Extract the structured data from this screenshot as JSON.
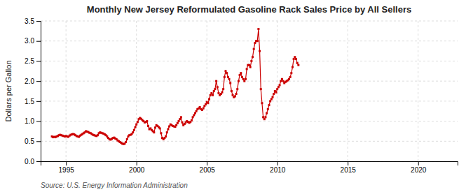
{
  "chart_data": {
    "type": "line",
    "title": "Monthly New Jersey Reformulated Gasoline Rack Sales Price by All Sellers",
    "y_label": "Dollars per Gallon",
    "annotations": [
      "Source: U.S. Energy Information Administration"
    ],
    "color": "#cc0000",
    "marker": "square",
    "line_style": "solid",
    "grid": true,
    "xlim": [
      1993.2,
      2022.8
    ],
    "ylim": [
      0.0,
      3.5
    ],
    "xticks": [
      1995,
      2000,
      2005,
      2010,
      2015,
      2020
    ],
    "yticks": [
      {
        "value": 0.0,
        "label": "0.0"
      },
      0.5,
      {
        "value": 1.0,
        "label": "1.0"
      },
      1.5,
      {
        "value": 2.0,
        "label": "2.0"
      },
      2.5,
      {
        "value": 3.0,
        "label": "3.0"
      },
      3.5
    ],
    "x": [
      1994.0,
      1994.083,
      1994.167,
      1994.25,
      1994.333,
      1994.417,
      1994.5,
      1994.583,
      1994.667,
      1994.75,
      1994.833,
      1994.917,
      1995.0,
      1995.083,
      1995.167,
      1995.25,
      1995.333,
      1995.417,
      1995.5,
      1995.583,
      1995.667,
      1995.75,
      1995.833,
      1995.917,
      1996.0,
      1996.083,
      1996.167,
      1996.25,
      1996.333,
      1996.417,
      1996.5,
      1996.583,
      1996.667,
      1996.75,
      1996.833,
      1996.917,
      1997.0,
      1997.083,
      1997.167,
      1997.25,
      1997.333,
      1997.417,
      1997.5,
      1997.583,
      1997.667,
      1997.75,
      1997.833,
      1997.917,
      1998.0,
      1998.083,
      1998.167,
      1998.25,
      1998.333,
      1998.417,
      1998.5,
      1998.583,
      1998.667,
      1998.75,
      1998.833,
      1998.917,
      1999.0,
      1999.083,
      1999.167,
      1999.25,
      1999.333,
      1999.417,
      1999.5,
      1999.583,
      1999.667,
      1999.75,
      1999.833,
      1999.917,
      2000.0,
      2000.083,
      2000.167,
      2000.25,
      2000.333,
      2000.417,
      2000.5,
      2000.583,
      2000.667,
      2000.75,
      2000.833,
      2000.917,
      2001.0,
      2001.083,
      2001.167,
      2001.25,
      2001.333,
      2001.417,
      2001.5,
      2001.583,
      2001.667,
      2001.75,
      2001.833,
      2001.917,
      2002.0,
      2002.083,
      2002.167,
      2002.25,
      2002.333,
      2002.417,
      2002.5,
      2002.583,
      2002.667,
      2002.75,
      2002.833,
      2002.917,
      2003.0,
      2003.083,
      2003.167,
      2003.25,
      2003.333,
      2003.417,
      2003.5,
      2003.583,
      2003.667,
      2003.75,
      2003.833,
      2003.917,
      2004.0,
      2004.083,
      2004.167,
      2004.25,
      2004.333,
      2004.417,
      2004.5,
      2004.583,
      2004.667,
      2004.75,
      2004.833,
      2004.917,
      2005.0,
      2005.083,
      2005.167,
      2005.25,
      2005.333,
      2005.417,
      2005.5,
      2005.583,
      2005.667,
      2005.75,
      2005.833,
      2005.917,
      2006.0,
      2006.083,
      2006.167,
      2006.25,
      2006.333,
      2006.417,
      2006.5,
      2006.583,
      2006.667,
      2006.75,
      2006.833,
      2006.917,
      2007.0,
      2007.083,
      2007.167,
      2007.25,
      2007.333,
      2007.417,
      2007.5,
      2007.583,
      2007.667,
      2007.75,
      2007.833,
      2007.917,
      2008.0,
      2008.083,
      2008.167,
      2008.25,
      2008.333,
      2008.417,
      2008.5,
      2008.583,
      2008.667,
      2008.75,
      2008.833,
      2008.917,
      2009.0,
      2009.083,
      2009.167,
      2009.25,
      2009.333,
      2009.417,
      2009.5,
      2009.583,
      2009.667,
      2009.75,
      2009.833,
      2009.917,
      2010.0,
      2010.083,
      2010.167,
      2010.25,
      2010.333,
      2010.417,
      2010.5,
      2010.583,
      2010.667,
      2010.75,
      2010.833,
      2010.917,
      2011.0,
      2011.083,
      2011.167,
      2011.25,
      2011.333,
      2011.417,
      2011.5
    ],
    "values": [
      0.62,
      0.6,
      0.61,
      0.6,
      0.62,
      0.63,
      0.65,
      0.66,
      0.65,
      0.64,
      0.63,
      0.62,
      0.63,
      0.62,
      0.61,
      0.64,
      0.66,
      0.67,
      0.68,
      0.67,
      0.65,
      0.63,
      0.62,
      0.61,
      0.64,
      0.66,
      0.68,
      0.7,
      0.72,
      0.75,
      0.74,
      0.73,
      0.71,
      0.7,
      0.68,
      0.66,
      0.65,
      0.64,
      0.63,
      0.65,
      0.7,
      0.72,
      0.71,
      0.7,
      0.69,
      0.67,
      0.65,
      0.62,
      0.58,
      0.55,
      0.54,
      0.56,
      0.58,
      0.59,
      0.57,
      0.55,
      0.52,
      0.5,
      0.48,
      0.46,
      0.44,
      0.43,
      0.44,
      0.48,
      0.55,
      0.62,
      0.65,
      0.66,
      0.68,
      0.72,
      0.78,
      0.85,
      0.92,
      0.98,
      1.05,
      1.08,
      1.06,
      1.03,
      1.0,
      0.97,
      0.98,
      1.0,
      0.88,
      0.8,
      0.82,
      0.78,
      0.75,
      0.72,
      0.84,
      0.9,
      0.88,
      0.85,
      0.82,
      0.7,
      0.58,
      0.55,
      0.58,
      0.62,
      0.72,
      0.8,
      0.87,
      0.92,
      0.9,
      0.88,
      0.87,
      0.86,
      0.9,
      0.95,
      1.0,
      1.05,
      1.1,
      0.97,
      0.9,
      0.93,
      0.97,
      1.0,
      0.98,
      0.96,
      0.98,
      1.02,
      1.1,
      1.15,
      1.2,
      1.25,
      1.3,
      1.32,
      1.35,
      1.3,
      1.28,
      1.32,
      1.38,
      1.42,
      1.48,
      1.45,
      1.55,
      1.65,
      1.7,
      1.65,
      1.75,
      1.8,
      2.0,
      1.85,
      1.7,
      1.65,
      1.68,
      1.72,
      1.8,
      2.1,
      2.25,
      2.2,
      2.1,
      2.05,
      1.95,
      1.75,
      1.65,
      1.6,
      1.62,
      1.68,
      1.8,
      2.0,
      2.15,
      2.2,
      2.1,
      2.05,
      2.0,
      2.05,
      2.3,
      2.4,
      2.4,
      2.35,
      2.5,
      2.6,
      2.8,
      2.95,
      3.0,
      3.0,
      3.3,
      2.75,
      1.8,
      1.45,
      1.1,
      1.05,
      1.1,
      1.2,
      1.3,
      1.4,
      1.5,
      1.55,
      1.6,
      1.68,
      1.75,
      1.72,
      1.8,
      1.85,
      1.9,
      2.0,
      2.05,
      2.0,
      1.95,
      1.98,
      2.0,
      2.02,
      2.05,
      2.1,
      2.2,
      2.35,
      2.55,
      2.6,
      2.55,
      2.45,
      2.4
    ]
  }
}
